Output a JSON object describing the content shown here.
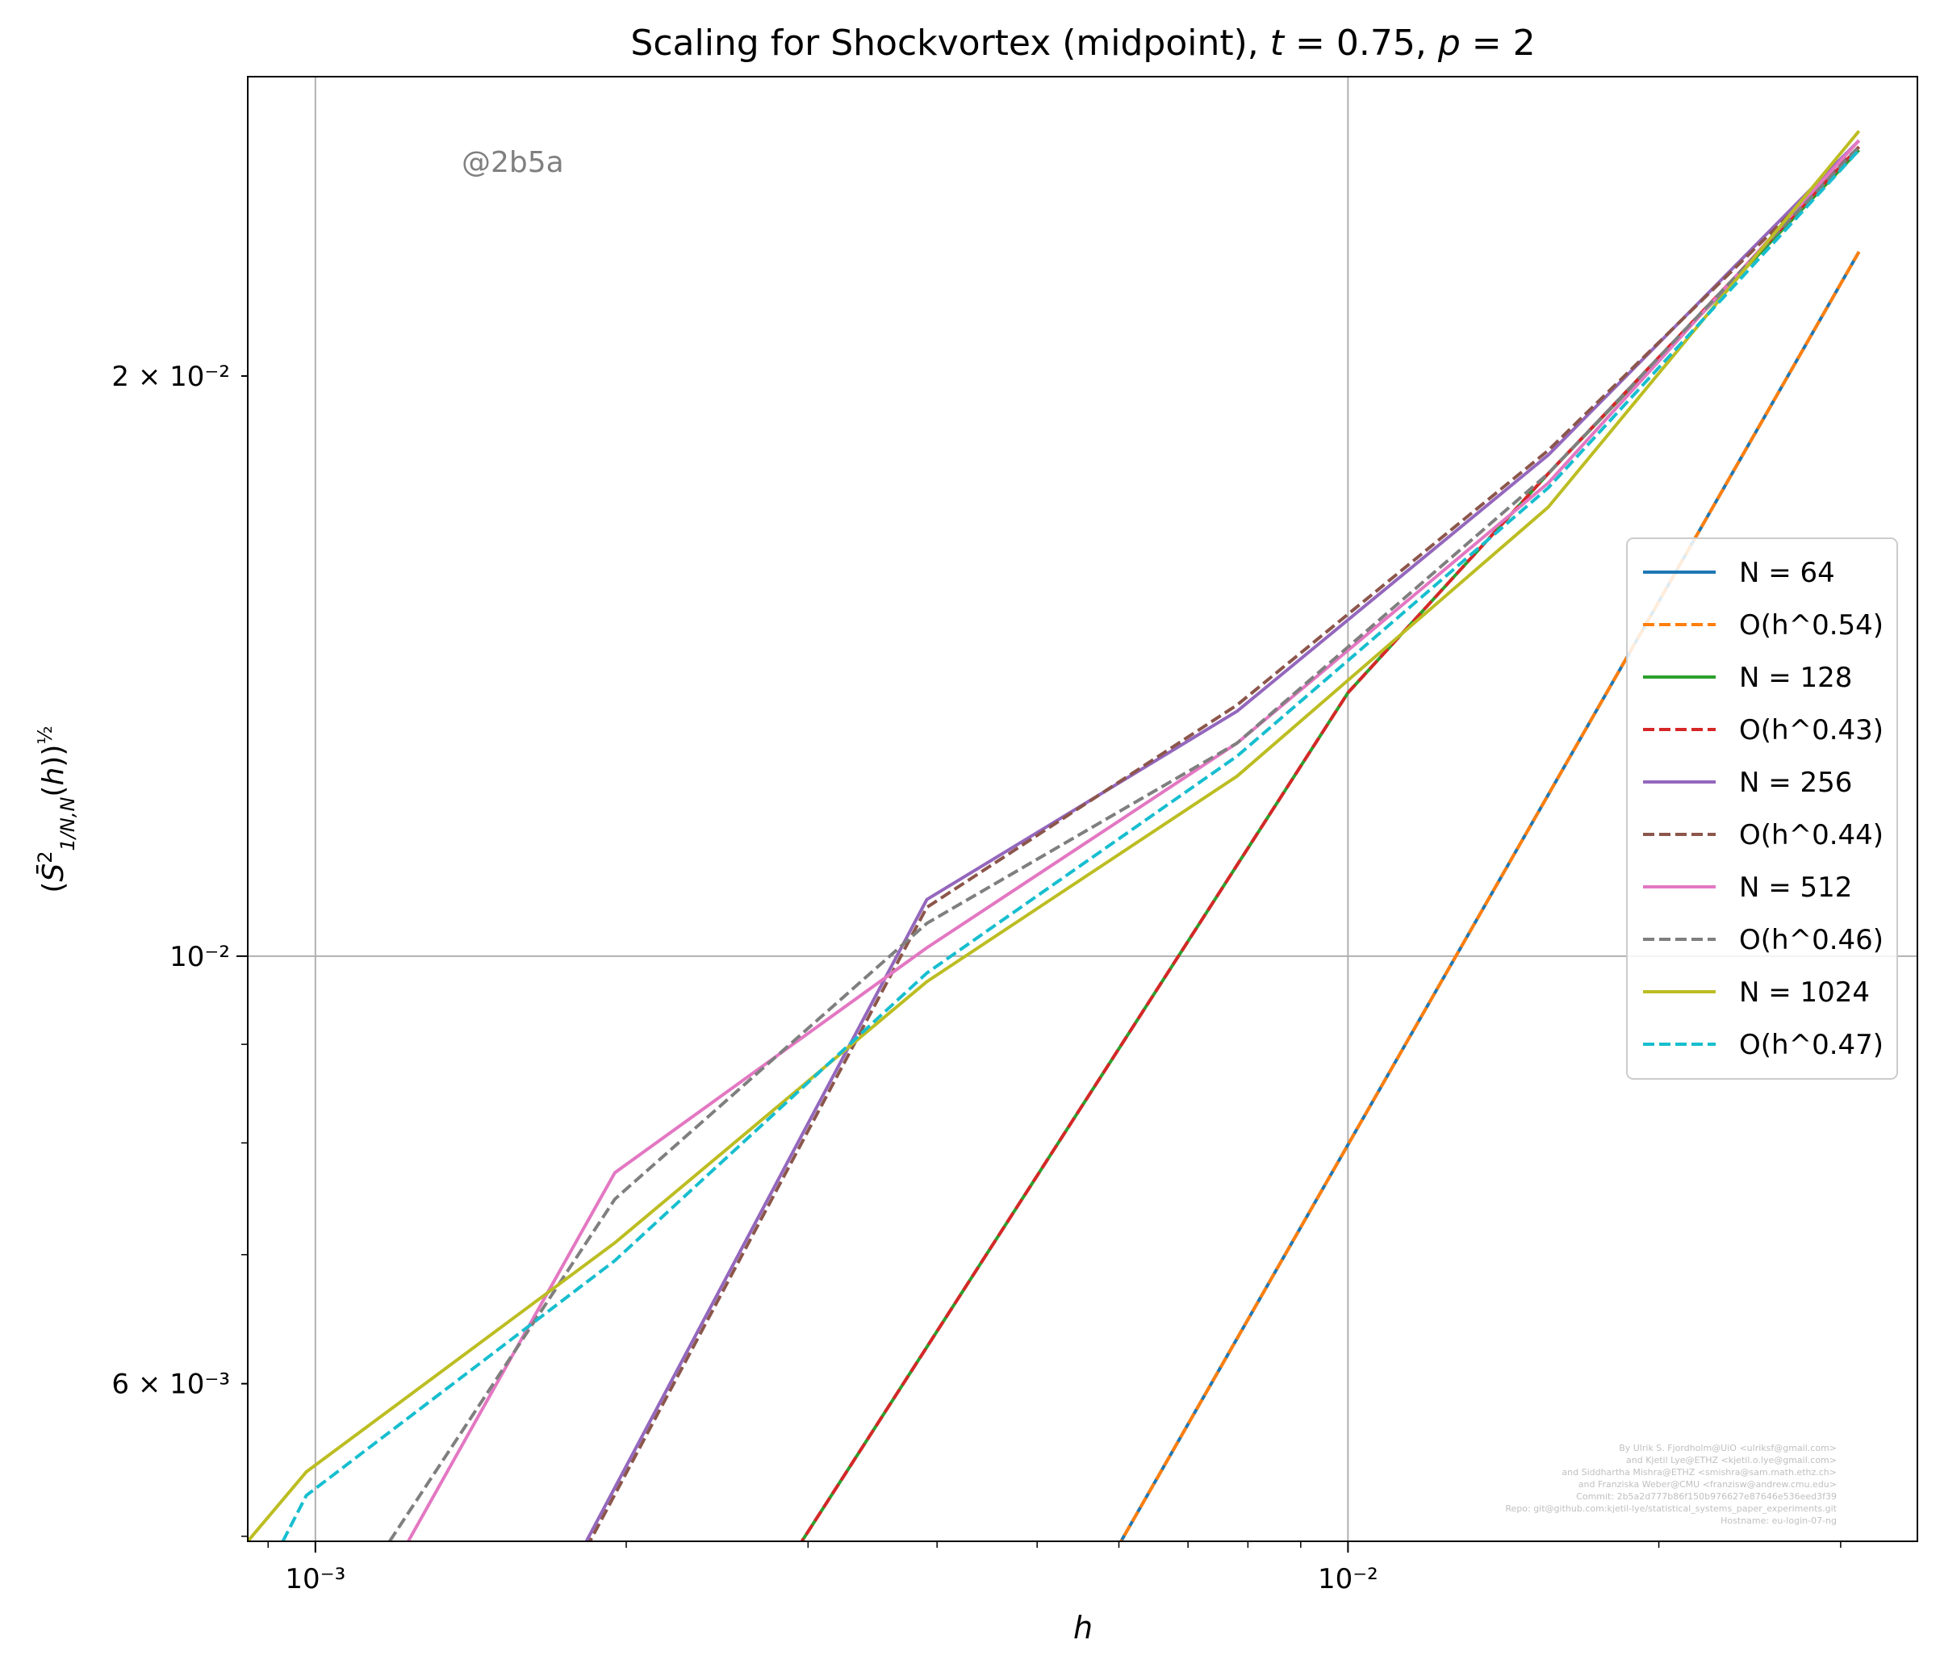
{
  "chart_data": {
    "type": "line",
    "title": "Scaling for Shockvortex (midpoint), t = 0.75, p = 2",
    "xlabel": "h",
    "ylabel": "(S̄²₁/N,N(h))^½",
    "xscale": "log",
    "yscale": "log",
    "xlim": [
      0.00086,
      0.0356
    ],
    "ylim": [
      0.00497,
      0.0286
    ],
    "grid": true,
    "legend_position": "center-right",
    "x_ticks": [
      {
        "value": 0.001,
        "label": "10⁻³"
      },
      {
        "value": 0.01,
        "label": "10⁻²"
      }
    ],
    "y_ticks": [
      {
        "value": 0.006,
        "label": "6 × 10⁻³"
      },
      {
        "value": 0.01,
        "label": "10⁻²"
      },
      {
        "value": 0.02,
        "label": "2 × 10⁻²"
      }
    ],
    "annotation": "@2b5a",
    "credits": [
      "By Ulrik S. Fjordholm@UiO <ulriksf@gmail.com>",
      "and Kjetil Lye@ETHZ <kjetil.o.lye@gmail.com>",
      "and Siddhartha Mishra@ETHZ <smishra@sam.math.ethz.ch>",
      "and Franziska Weber@CMU <franzisw@andrew.cmu.edu>",
      "Commit: 2b5a2d777b86f150b976627e87646e536eed3f39",
      "Repo: git@github.com:kjetil-lye/statistical_systems_paper_experiments.git",
      "Hostname: eu-login-07-ng"
    ],
    "series": [
      {
        "name": "N = 64",
        "color": "#1f77b4",
        "dash": "solid",
        "x": [
          0.00586,
          0.03125
        ],
        "y": [
          0.00484,
          0.0232
        ]
      },
      {
        "name": "O(h^0.54)",
        "color": "#ff7f0e",
        "dash": "dashed",
        "x": [
          0.00586,
          0.03125
        ],
        "y": [
          0.00484,
          0.0232
        ]
      },
      {
        "name": "N = 128",
        "color": "#2ca02c",
        "dash": "solid",
        "x": [
          0.00293,
          0.01,
          0.01563,
          0.03125
        ],
        "y": [
          0.00493,
          0.0137,
          0.0178,
          0.0262
        ]
      },
      {
        "name": "O(h^0.43)",
        "color": "#d62728",
        "dash": "dashed",
        "x": [
          0.00293,
          0.01,
          0.01563,
          0.03125
        ],
        "y": [
          0.00493,
          0.0137,
          0.0178,
          0.0263
        ]
      },
      {
        "name": "N = 256",
        "color": "#9467bd",
        "dash": "solid",
        "x": [
          0.00183,
          0.00391,
          0.00781,
          0.01563,
          0.03125
        ],
        "y": [
          0.00497,
          0.0107,
          0.0134,
          0.0182,
          0.0265
        ]
      },
      {
        "name": "O(h^0.44)",
        "color": "#8c564b",
        "dash": "dashed",
        "x": [
          0.00183,
          0.00391,
          0.00781,
          0.01563,
          0.03125
        ],
        "y": [
          0.00493,
          0.0106,
          0.0135,
          0.0183,
          0.0263
        ]
      },
      {
        "name": "N = 512",
        "color": "#e377c2",
        "dash": "solid",
        "x": [
          0.00123,
          0.00195,
          0.00391,
          0.00781,
          0.01563,
          0.03125
        ],
        "y": [
          0.00497,
          0.00772,
          0.0101,
          0.0129,
          0.0176,
          0.0265
        ]
      },
      {
        "name": "O(h^0.46)",
        "color": "#7f7f7f",
        "dash": "dashed",
        "x": [
          0.00118,
          0.00195,
          0.00391,
          0.00781,
          0.01563,
          0.03125
        ],
        "y": [
          0.00497,
          0.00748,
          0.0104,
          0.0129,
          0.0178,
          0.0263
        ]
      },
      {
        "name": "N = 1024",
        "color": "#bcbd22",
        "dash": "solid",
        "x": [
          0.00086,
          0.00098,
          0.00195,
          0.00391,
          0.00781,
          0.01563,
          0.03125
        ],
        "y": [
          0.00497,
          0.0054,
          0.0071,
          0.0097,
          0.0124,
          0.0171,
          0.0268
        ]
      },
      {
        "name": "O(h^0.47)",
        "color": "#17becf",
        "dash": "dashed",
        "x": [
          0.00093,
          0.00098,
          0.00195,
          0.00391,
          0.00781,
          0.01563,
          0.03125
        ],
        "y": [
          0.00497,
          0.00525,
          0.00695,
          0.0098,
          0.0127,
          0.0175,
          0.0262
        ]
      }
    ]
  }
}
